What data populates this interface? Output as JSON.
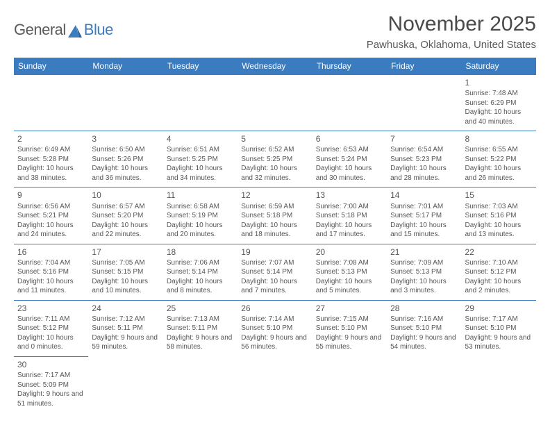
{
  "logo": {
    "part1": "General",
    "part2": "Blue"
  },
  "header": {
    "month_title": "November 2025",
    "location": "Pawhuska, Oklahoma, United States"
  },
  "colors": {
    "header_bg": "#3b7bbf",
    "header_text": "#ffffff",
    "cell_border": "#3b7bbf",
    "text": "#555555",
    "logo_gray": "#5a5a5a",
    "logo_blue": "#3b7bbf",
    "background": "#ffffff"
  },
  "typography": {
    "month_title_fontsize": 30,
    "location_fontsize": 15,
    "dayheader_fontsize": 12,
    "cell_fontsize": 10,
    "daynum_fontsize": 12
  },
  "day_headers": [
    "Sunday",
    "Monday",
    "Tuesday",
    "Wednesday",
    "Thursday",
    "Friday",
    "Saturday"
  ],
  "weeks": [
    [
      null,
      null,
      null,
      null,
      null,
      null,
      {
        "n": "1",
        "sr": "Sunrise: 7:48 AM",
        "ss": "Sunset: 6:29 PM",
        "dl": "Daylight: 10 hours and 40 minutes."
      }
    ],
    [
      {
        "n": "2",
        "sr": "Sunrise: 6:49 AM",
        "ss": "Sunset: 5:28 PM",
        "dl": "Daylight: 10 hours and 38 minutes."
      },
      {
        "n": "3",
        "sr": "Sunrise: 6:50 AM",
        "ss": "Sunset: 5:26 PM",
        "dl": "Daylight: 10 hours and 36 minutes."
      },
      {
        "n": "4",
        "sr": "Sunrise: 6:51 AM",
        "ss": "Sunset: 5:25 PM",
        "dl": "Daylight: 10 hours and 34 minutes."
      },
      {
        "n": "5",
        "sr": "Sunrise: 6:52 AM",
        "ss": "Sunset: 5:25 PM",
        "dl": "Daylight: 10 hours and 32 minutes."
      },
      {
        "n": "6",
        "sr": "Sunrise: 6:53 AM",
        "ss": "Sunset: 5:24 PM",
        "dl": "Daylight: 10 hours and 30 minutes."
      },
      {
        "n": "7",
        "sr": "Sunrise: 6:54 AM",
        "ss": "Sunset: 5:23 PM",
        "dl": "Daylight: 10 hours and 28 minutes."
      },
      {
        "n": "8",
        "sr": "Sunrise: 6:55 AM",
        "ss": "Sunset: 5:22 PM",
        "dl": "Daylight: 10 hours and 26 minutes."
      }
    ],
    [
      {
        "n": "9",
        "sr": "Sunrise: 6:56 AM",
        "ss": "Sunset: 5:21 PM",
        "dl": "Daylight: 10 hours and 24 minutes."
      },
      {
        "n": "10",
        "sr": "Sunrise: 6:57 AM",
        "ss": "Sunset: 5:20 PM",
        "dl": "Daylight: 10 hours and 22 minutes."
      },
      {
        "n": "11",
        "sr": "Sunrise: 6:58 AM",
        "ss": "Sunset: 5:19 PM",
        "dl": "Daylight: 10 hours and 20 minutes."
      },
      {
        "n": "12",
        "sr": "Sunrise: 6:59 AM",
        "ss": "Sunset: 5:18 PM",
        "dl": "Daylight: 10 hours and 18 minutes."
      },
      {
        "n": "13",
        "sr": "Sunrise: 7:00 AM",
        "ss": "Sunset: 5:18 PM",
        "dl": "Daylight: 10 hours and 17 minutes."
      },
      {
        "n": "14",
        "sr": "Sunrise: 7:01 AM",
        "ss": "Sunset: 5:17 PM",
        "dl": "Daylight: 10 hours and 15 minutes."
      },
      {
        "n": "15",
        "sr": "Sunrise: 7:03 AM",
        "ss": "Sunset: 5:16 PM",
        "dl": "Daylight: 10 hours and 13 minutes."
      }
    ],
    [
      {
        "n": "16",
        "sr": "Sunrise: 7:04 AM",
        "ss": "Sunset: 5:16 PM",
        "dl": "Daylight: 10 hours and 11 minutes."
      },
      {
        "n": "17",
        "sr": "Sunrise: 7:05 AM",
        "ss": "Sunset: 5:15 PM",
        "dl": "Daylight: 10 hours and 10 minutes."
      },
      {
        "n": "18",
        "sr": "Sunrise: 7:06 AM",
        "ss": "Sunset: 5:14 PM",
        "dl": "Daylight: 10 hours and 8 minutes."
      },
      {
        "n": "19",
        "sr": "Sunrise: 7:07 AM",
        "ss": "Sunset: 5:14 PM",
        "dl": "Daylight: 10 hours and 7 minutes."
      },
      {
        "n": "20",
        "sr": "Sunrise: 7:08 AM",
        "ss": "Sunset: 5:13 PM",
        "dl": "Daylight: 10 hours and 5 minutes."
      },
      {
        "n": "21",
        "sr": "Sunrise: 7:09 AM",
        "ss": "Sunset: 5:13 PM",
        "dl": "Daylight: 10 hours and 3 minutes."
      },
      {
        "n": "22",
        "sr": "Sunrise: 7:10 AM",
        "ss": "Sunset: 5:12 PM",
        "dl": "Daylight: 10 hours and 2 minutes."
      }
    ],
    [
      {
        "n": "23",
        "sr": "Sunrise: 7:11 AM",
        "ss": "Sunset: 5:12 PM",
        "dl": "Daylight: 10 hours and 0 minutes."
      },
      {
        "n": "24",
        "sr": "Sunrise: 7:12 AM",
        "ss": "Sunset: 5:11 PM",
        "dl": "Daylight: 9 hours and 59 minutes."
      },
      {
        "n": "25",
        "sr": "Sunrise: 7:13 AM",
        "ss": "Sunset: 5:11 PM",
        "dl": "Daylight: 9 hours and 58 minutes."
      },
      {
        "n": "26",
        "sr": "Sunrise: 7:14 AM",
        "ss": "Sunset: 5:10 PM",
        "dl": "Daylight: 9 hours and 56 minutes."
      },
      {
        "n": "27",
        "sr": "Sunrise: 7:15 AM",
        "ss": "Sunset: 5:10 PM",
        "dl": "Daylight: 9 hours and 55 minutes."
      },
      {
        "n": "28",
        "sr": "Sunrise: 7:16 AM",
        "ss": "Sunset: 5:10 PM",
        "dl": "Daylight: 9 hours and 54 minutes."
      },
      {
        "n": "29",
        "sr": "Sunrise: 7:17 AM",
        "ss": "Sunset: 5:10 PM",
        "dl": "Daylight: 9 hours and 53 minutes."
      }
    ],
    [
      {
        "n": "30",
        "sr": "Sunrise: 7:17 AM",
        "ss": "Sunset: 5:09 PM",
        "dl": "Daylight: 9 hours and 51 minutes."
      },
      null,
      null,
      null,
      null,
      null,
      null
    ]
  ]
}
